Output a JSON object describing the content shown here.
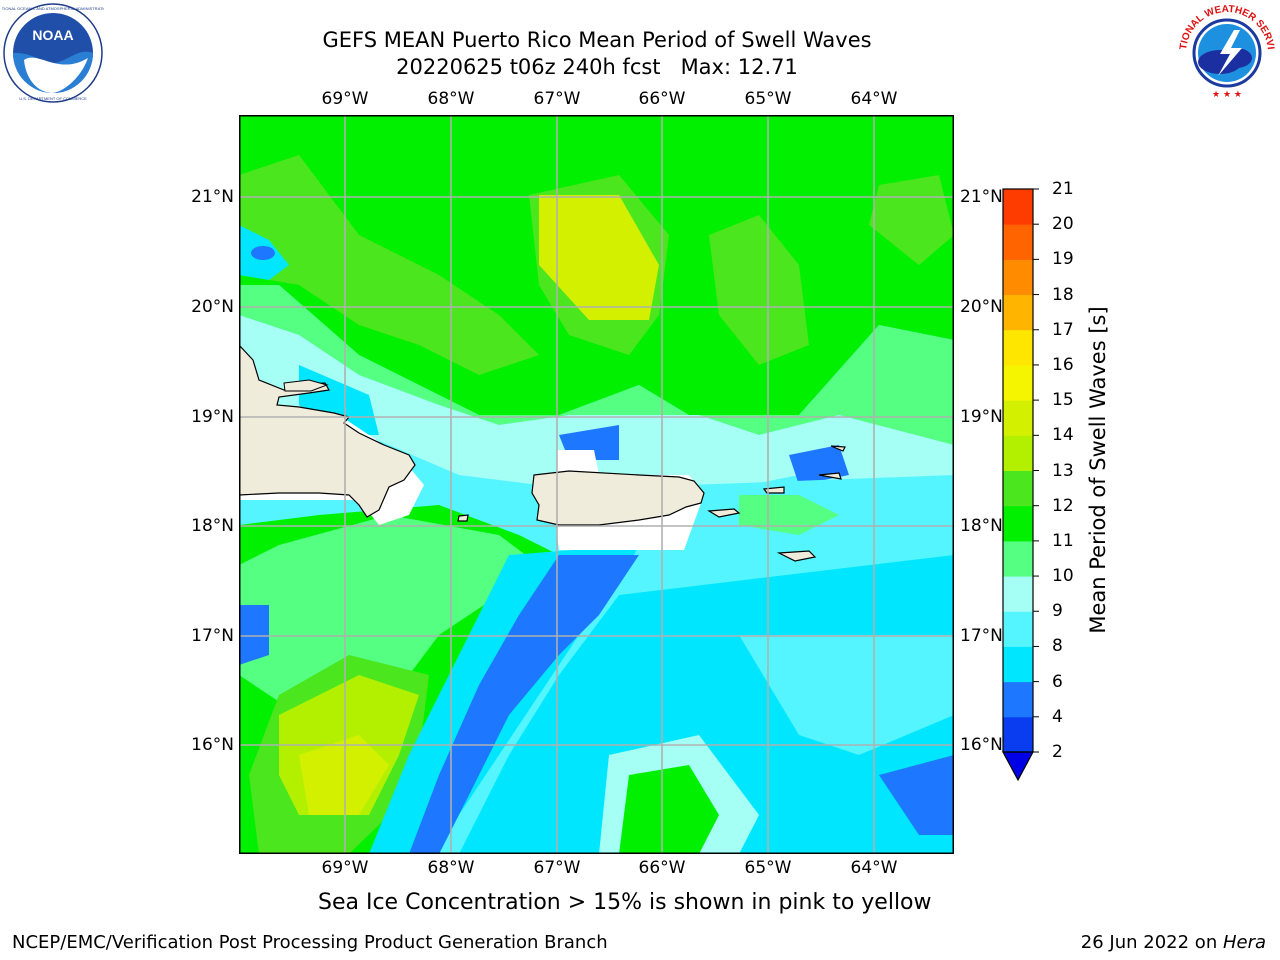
{
  "header": {
    "title_line1": "GEFS MEAN Puerto Rico Mean Period of Swell Waves",
    "title_line2": "20220625 t06z 240h fcst   Max: 12.71"
  },
  "logos": {
    "left": {
      "name": "noaa-logo",
      "text": "NOAA",
      "ring_text": "NATIONAL OCEANIC AND ATMOSPHERIC ADMINISTRATION · U.S. DEPARTMENT OF COMMERCE"
    },
    "right": {
      "name": "nws-logo",
      "ring_text": "NATIONAL WEATHER SERVICE"
    }
  },
  "map": {
    "lon_ticks": [
      "69°W",
      "68°W",
      "67°W",
      "66°W",
      "65°W",
      "64°W"
    ],
    "lat_ticks": [
      "21°N",
      "20°N",
      "19°N",
      "18°N",
      "17°N",
      "16°N"
    ],
    "land_color": "#efecdc",
    "grid_color": "#b0b0b0"
  },
  "colorbar": {
    "title": "Mean Period of Swell Waves [s]",
    "levels": [
      "2",
      "4",
      "6",
      "8",
      "9",
      "10",
      "11",
      "12",
      "13",
      "14",
      "15",
      "16",
      "17",
      "18",
      "19",
      "20",
      "21"
    ],
    "colors": [
      "#0a3cf0",
      "#1e78ff",
      "#00e6ff",
      "#55f5ff",
      "#a6fff5",
      "#55ff82",
      "#00f000",
      "#4be61e",
      "#b3f000",
      "#d2f000",
      "#f5f500",
      "#ffe600",
      "#ffb400",
      "#ff8c00",
      "#ff6400",
      "#ff3c00",
      "#ff0000"
    ],
    "under_color": "#0000e6"
  },
  "caption": "Sea Ice Concentration > 15% is shown in pink to yellow",
  "footer": {
    "left": "NCEP/EMC/Verification Post Processing Product Generation Branch",
    "right_date": "26 Jun 2022 on ",
    "right_host": "Hera"
  }
}
